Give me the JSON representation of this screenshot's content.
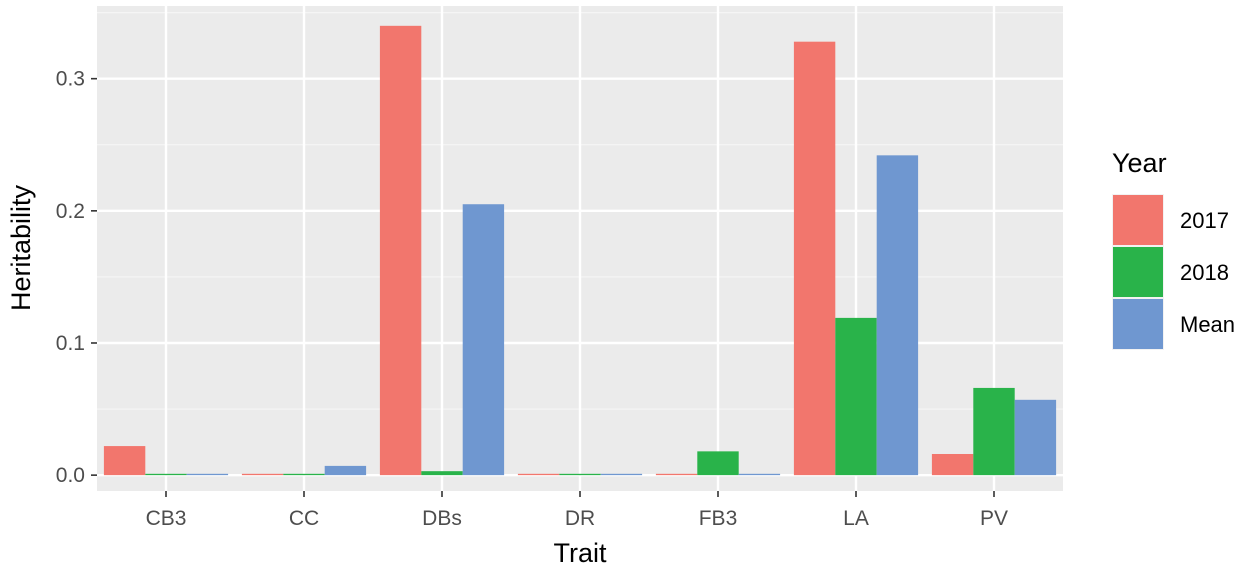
{
  "chart_data": {
    "type": "bar",
    "title": "",
    "xlabel": "Trait",
    "ylabel": "Heritability",
    "categories": [
      "CB3",
      "CC",
      "DBs",
      "DR",
      "FB3",
      "LA",
      "PV"
    ],
    "series": [
      {
        "name": "2017",
        "color": "#F2766D",
        "values": [
          0.022,
          0.001,
          0.34,
          0.001,
          0.001,
          0.328,
          0.016
        ]
      },
      {
        "name": "2018",
        "color": "#29B34A",
        "values": [
          0.001,
          0.001,
          0.003,
          0.001,
          0.018,
          0.119,
          0.066
        ]
      },
      {
        "name": "Mean",
        "color": "#6F97D0",
        "values": [
          0.001,
          0.007,
          0.205,
          0.001,
          0.001,
          0.242,
          0.057
        ]
      }
    ],
    "ylim": [
      -0.012,
      0.355
    ],
    "yticks": [
      0.0,
      0.1,
      0.2,
      0.3
    ],
    "ytick_labels": [
      "0.0",
      "0.1",
      "0.2",
      "0.3"
    ],
    "grid": true,
    "legend": {
      "title": "Year",
      "position": "right"
    }
  }
}
